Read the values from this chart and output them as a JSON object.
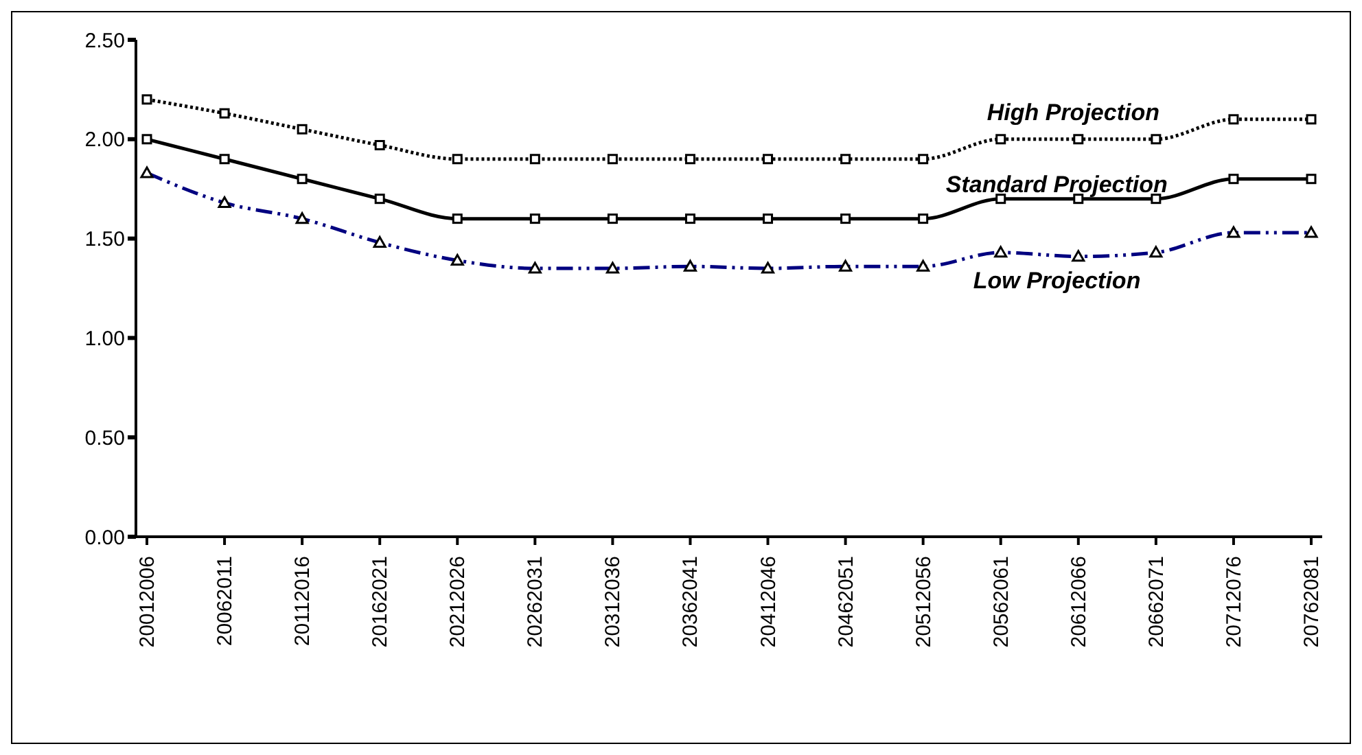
{
  "chart_data": {
    "type": "line",
    "categories": [
      "20012006",
      "20062011",
      "20112016",
      "20162021",
      "20212026",
      "20262031",
      "20312036",
      "20362041",
      "20412046",
      "20462051",
      "20512056",
      "20562061",
      "20612066",
      "20662071",
      "20712076",
      "20762081"
    ],
    "series": [
      {
        "name": "High Projection",
        "color": "#000000",
        "line_style": "dotted",
        "marker": "square",
        "values": [
          2.2,
          2.13,
          2.05,
          1.97,
          1.9,
          1.9,
          1.9,
          1.9,
          1.9,
          1.9,
          1.9,
          2.0,
          2.0,
          2.0,
          2.1,
          2.1
        ]
      },
      {
        "name": "Standard Projection",
        "color": "#000000",
        "line_style": "solid",
        "marker": "square",
        "values": [
          2.0,
          1.9,
          1.8,
          1.7,
          1.6,
          1.6,
          1.6,
          1.6,
          1.6,
          1.6,
          1.6,
          1.7,
          1.7,
          1.7,
          1.8,
          1.8
        ]
      },
      {
        "name": "Low Projection",
        "color": "#000080",
        "line_style": "dashed",
        "marker": "triangle",
        "values": [
          1.83,
          1.68,
          1.6,
          1.48,
          1.39,
          1.35,
          1.35,
          1.36,
          1.35,
          1.36,
          1.36,
          1.43,
          1.41,
          1.43,
          1.53,
          1.53
        ]
      }
    ],
    "ylim": [
      0,
      2.5
    ],
    "yticks": [
      {
        "value": 0,
        "label": "0.00"
      },
      {
        "value": 0.5,
        "label": "0.50"
      },
      {
        "value": 1,
        "label": "1.00"
      },
      {
        "value": 1.5,
        "label": "1.50"
      },
      {
        "value": 2,
        "label": "2.00"
      },
      {
        "value": 2.5,
        "label": "2.50"
      }
    ],
    "grid": false,
    "legend": false
  }
}
